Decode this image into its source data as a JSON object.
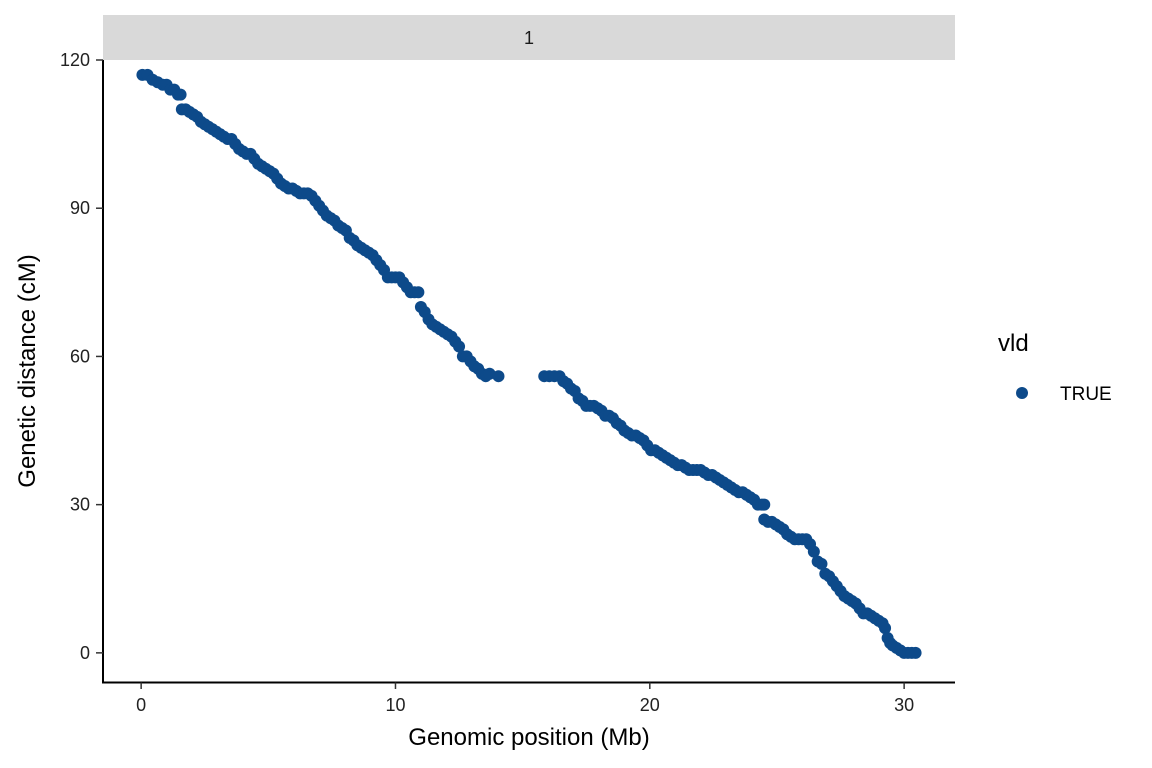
{
  "chart_data": {
    "type": "scatter",
    "facet_label": "1",
    "xlabel": "Genomic position (Mb)",
    "ylabel": "Genetic distance (cM)",
    "xlim": [
      -1.5,
      32
    ],
    "ylim": [
      -6,
      120
    ],
    "x_ticks": [
      0,
      10,
      20,
      30
    ],
    "y_ticks": [
      0,
      30,
      60,
      90,
      120
    ],
    "grid": false,
    "legend": {
      "title": "vld",
      "position": "right",
      "entries": [
        {
          "label": "TRUE",
          "color": "#0d4a8a"
        }
      ]
    },
    "point_color": "#0d4a8a",
    "series": [
      {
        "values": [
          [
            0.05,
            117
          ],
          [
            0.25,
            117
          ],
          [
            0.45,
            116
          ],
          [
            0.65,
            115.5
          ],
          [
            0.85,
            115
          ],
          [
            1.0,
            115
          ],
          [
            1.15,
            114
          ],
          [
            1.3,
            114
          ],
          [
            1.45,
            113
          ],
          [
            1.55,
            113
          ],
          [
            1.6,
            110
          ],
          [
            1.75,
            110
          ],
          [
            1.9,
            109.5
          ],
          [
            2.05,
            109
          ],
          [
            2.2,
            108.5
          ],
          [
            2.35,
            107.5
          ],
          [
            2.5,
            107
          ],
          [
            2.65,
            106.5
          ],
          [
            2.8,
            106
          ],
          [
            2.95,
            105.5
          ],
          [
            3.1,
            105
          ],
          [
            3.25,
            104.5
          ],
          [
            3.4,
            104
          ],
          [
            3.55,
            104
          ],
          [
            3.7,
            103
          ],
          [
            3.85,
            102
          ],
          [
            4.0,
            101.5
          ],
          [
            4.15,
            101
          ],
          [
            4.3,
            101
          ],
          [
            4.45,
            100
          ],
          [
            4.6,
            99
          ],
          [
            4.75,
            98.5
          ],
          [
            4.9,
            98
          ],
          [
            5.05,
            97.5
          ],
          [
            5.2,
            97
          ],
          [
            5.35,
            96
          ],
          [
            5.5,
            95
          ],
          [
            5.65,
            94.5
          ],
          [
            5.8,
            94
          ],
          [
            5.95,
            94
          ],
          [
            6.1,
            93.5
          ],
          [
            6.25,
            93
          ],
          [
            6.4,
            93
          ],
          [
            6.55,
            93
          ],
          [
            6.7,
            92.5
          ],
          [
            6.85,
            91.5
          ],
          [
            7.0,
            90.5
          ],
          [
            7.15,
            89.5
          ],
          [
            7.3,
            88.5
          ],
          [
            7.45,
            88
          ],
          [
            7.6,
            87.5
          ],
          [
            7.75,
            86.5
          ],
          [
            7.9,
            86
          ],
          [
            8.05,
            85.5
          ],
          [
            8.2,
            84
          ],
          [
            8.35,
            83.5
          ],
          [
            8.5,
            82.5
          ],
          [
            8.65,
            82
          ],
          [
            8.8,
            81.5
          ],
          [
            8.95,
            81
          ],
          [
            9.1,
            80.5
          ],
          [
            9.25,
            79.5
          ],
          [
            9.4,
            78.5
          ],
          [
            9.55,
            77.5
          ],
          [
            9.7,
            76
          ],
          [
            9.85,
            76
          ],
          [
            10.0,
            76
          ],
          [
            10.15,
            76
          ],
          [
            10.3,
            75
          ],
          [
            10.45,
            74
          ],
          [
            10.6,
            73
          ],
          [
            10.75,
            73
          ],
          [
            10.9,
            73
          ],
          [
            11.0,
            70
          ],
          [
            11.15,
            69
          ],
          [
            11.3,
            67.5
          ],
          [
            11.45,
            66.5
          ],
          [
            11.6,
            66
          ],
          [
            11.75,
            65.5
          ],
          [
            11.9,
            65
          ],
          [
            12.05,
            64.5
          ],
          [
            12.2,
            64
          ],
          [
            12.35,
            63
          ],
          [
            12.5,
            62
          ],
          [
            12.65,
            60
          ],
          [
            12.8,
            60
          ],
          [
            12.95,
            59
          ],
          [
            13.1,
            58
          ],
          [
            13.25,
            57.5
          ],
          [
            13.4,
            56.5
          ],
          [
            13.55,
            56
          ],
          [
            13.7,
            56.5
          ],
          [
            14.05,
            56
          ],
          [
            15.85,
            56
          ],
          [
            16.05,
            56
          ],
          [
            16.25,
            56
          ],
          [
            16.45,
            56
          ],
          [
            16.6,
            55
          ],
          [
            16.75,
            54.5
          ],
          [
            16.9,
            53.5
          ],
          [
            17.05,
            53
          ],
          [
            17.2,
            51.5
          ],
          [
            17.35,
            51
          ],
          [
            17.5,
            50
          ],
          [
            17.65,
            50
          ],
          [
            17.8,
            50
          ],
          [
            17.95,
            49.5
          ],
          [
            18.1,
            49
          ],
          [
            18.25,
            48
          ],
          [
            18.4,
            48
          ],
          [
            18.55,
            47.5
          ],
          [
            18.7,
            46.5
          ],
          [
            18.85,
            46
          ],
          [
            19.0,
            45
          ],
          [
            19.15,
            44.5
          ],
          [
            19.3,
            44
          ],
          [
            19.45,
            44
          ],
          [
            19.6,
            43.5
          ],
          [
            19.75,
            43
          ],
          [
            19.9,
            42
          ],
          [
            20.05,
            41
          ],
          [
            20.2,
            41
          ],
          [
            20.35,
            40.5
          ],
          [
            20.5,
            40
          ],
          [
            20.65,
            39.5
          ],
          [
            20.8,
            39
          ],
          [
            20.95,
            38.5
          ],
          [
            21.1,
            38
          ],
          [
            21.25,
            38
          ],
          [
            21.4,
            37.5
          ],
          [
            21.55,
            37
          ],
          [
            21.7,
            37
          ],
          [
            21.85,
            37
          ],
          [
            22.0,
            37
          ],
          [
            22.15,
            36.5
          ],
          [
            22.3,
            36
          ],
          [
            22.45,
            36
          ],
          [
            22.6,
            35.5
          ],
          [
            22.75,
            35
          ],
          [
            22.9,
            34.5
          ],
          [
            23.05,
            34
          ],
          [
            23.2,
            33.5
          ],
          [
            23.35,
            33
          ],
          [
            23.5,
            32.5
          ],
          [
            23.65,
            32.5
          ],
          [
            23.8,
            32
          ],
          [
            23.95,
            31.5
          ],
          [
            24.1,
            31
          ],
          [
            24.25,
            30
          ],
          [
            24.4,
            30
          ],
          [
            24.5,
            30
          ],
          [
            24.5,
            27
          ],
          [
            24.65,
            26.5
          ],
          [
            24.8,
            26.5
          ],
          [
            24.95,
            26
          ],
          [
            25.1,
            25.5
          ],
          [
            25.25,
            25
          ],
          [
            25.4,
            24
          ],
          [
            25.55,
            23.5
          ],
          [
            25.7,
            23
          ],
          [
            25.85,
            23
          ],
          [
            26.0,
            23
          ],
          [
            26.15,
            23
          ],
          [
            26.3,
            22
          ],
          [
            26.45,
            20.5
          ],
          [
            26.6,
            18.5
          ],
          [
            26.75,
            18
          ],
          [
            26.9,
            16
          ],
          [
            27.05,
            15.5
          ],
          [
            27.2,
            14.5
          ],
          [
            27.35,
            13.5
          ],
          [
            27.5,
            12.5
          ],
          [
            27.65,
            11.5
          ],
          [
            27.8,
            11
          ],
          [
            27.95,
            10.5
          ],
          [
            28.1,
            10
          ],
          [
            28.25,
            9
          ],
          [
            28.4,
            8
          ],
          [
            28.55,
            8
          ],
          [
            28.7,
            7.5
          ],
          [
            28.85,
            7
          ],
          [
            29.0,
            6.5
          ],
          [
            29.15,
            6
          ],
          [
            29.25,
            5
          ],
          [
            29.35,
            3
          ],
          [
            29.45,
            2
          ],
          [
            29.55,
            1.5
          ],
          [
            29.7,
            1
          ],
          [
            29.85,
            0.5
          ],
          [
            30.0,
            0
          ],
          [
            30.15,
            0
          ],
          [
            30.3,
            0
          ],
          [
            30.45,
            0
          ]
        ]
      }
    ]
  }
}
